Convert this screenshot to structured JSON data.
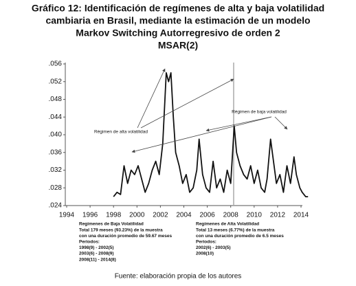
{
  "chart_data": {
    "type": "line",
    "title_lines": [
      "Gráfico 12: Identificación de regímenes de alta y baja volatilidad",
      "cambiaria en Brasil, mediante la estimación de un modelo",
      "Markov Switching Autorregresivo de orden 2",
      "MSAR(2)"
    ],
    "x": [
      1998.0,
      1998.3,
      1998.6,
      1998.9,
      1999.2,
      1999.5,
      1999.8,
      2000.1,
      2000.4,
      2000.7,
      2001.0,
      2001.3,
      2001.6,
      2001.9,
      2002.2,
      2002.5,
      2002.7,
      2002.9,
      2003.1,
      2003.3,
      2003.6,
      2003.9,
      2004.2,
      2004.5,
      2004.8,
      2005.1,
      2005.3,
      2005.6,
      2005.9,
      2006.2,
      2006.5,
      2006.8,
      2007.1,
      2007.4,
      2007.7,
      2008.0,
      2008.3,
      2008.5,
      2008.8,
      2009.1,
      2009.4,
      2009.7,
      2010.0,
      2010.3,
      2010.6,
      2010.9,
      2011.1,
      2011.4,
      2011.6,
      2011.9,
      2012.2,
      2012.5,
      2012.8,
      2013.1,
      2013.4,
      2013.6,
      2013.9,
      2014.1,
      2014.4,
      2014.6
    ],
    "values": [
      0.026,
      0.027,
      0.0265,
      0.033,
      0.029,
      0.032,
      0.031,
      0.033,
      0.03,
      0.027,
      0.029,
      0.032,
      0.034,
      0.031,
      0.038,
      0.054,
      0.052,
      0.054,
      0.044,
      0.036,
      0.033,
      0.029,
      0.031,
      0.027,
      0.028,
      0.032,
      0.039,
      0.031,
      0.028,
      0.027,
      0.034,
      0.028,
      0.03,
      0.027,
      0.032,
      0.029,
      0.042,
      0.036,
      0.033,
      0.031,
      0.03,
      0.033,
      0.029,
      0.032,
      0.028,
      0.027,
      0.03,
      0.039,
      0.035,
      0.029,
      0.031,
      0.027,
      0.033,
      0.029,
      0.035,
      0.031,
      0.028,
      0.027,
      0.026,
      0.026
    ],
    "color": "#111111",
    "vertical_line": 2008.25,
    "xlim": [
      1994,
      2014
    ],
    "xticks": [
      1994,
      1996,
      1998,
      2000,
      2002,
      2004,
      2006,
      2008,
      2010,
      2012,
      2014
    ],
    "ylim": [
      0.024,
      0.056
    ],
    "yticks": [
      {
        "value": 0.024,
        "label": ".024"
      },
      {
        "value": 0.028,
        "label": ".028"
      },
      {
        "value": 0.032,
        "label": ".032"
      },
      {
        "value": 0.036,
        "label": ".036"
      },
      {
        "value": 0.04,
        "label": ".040"
      },
      {
        "value": 0.044,
        "label": ".044"
      },
      {
        "value": 0.048,
        "label": ".048"
      },
      {
        "value": 0.052,
        "label": ".052"
      },
      {
        "value": 0.056,
        "label": ".056"
      }
    ],
    "annotations": [
      "Régimen de alta volatilidad",
      "Régimen de baja volatilidad"
    ],
    "notes_left": [
      "Regimenes de Baja Volatilidad",
      "Total 179 meses (93.23%) de la muestra",
      "con una duración promedio de 59.67 meses",
      "Periodos:",
      "1998(9) - 2002(5)",
      "2003(6)  - 2008(9)",
      "2008(11)  - 2014(8)"
    ],
    "notes_right": [
      "Regímenes de Alta Volatilidad",
      "Total 13 meses (6.77%) de la muestra",
      "con una duración promedio de 6.5 meses",
      "Periodos:",
      "2002(6) - 2003(5)",
      "2008(10)"
    ],
    "source": "Fuente: elaboración propia de los autores"
  }
}
